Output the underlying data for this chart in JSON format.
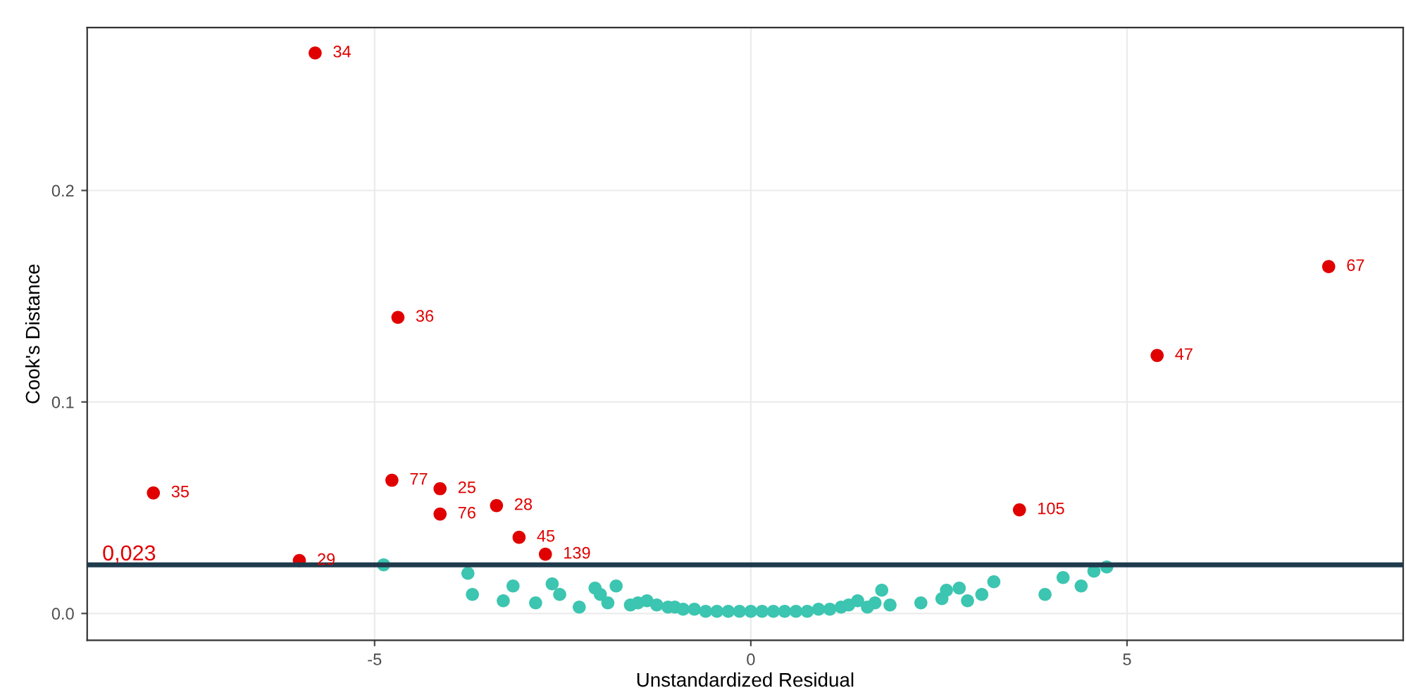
{
  "chart_data": {
    "type": "scatter",
    "xlabel": "Unstandardized Residual",
    "ylabel": "Cook's Distance",
    "xlim": [
      -8.82,
      8.67
    ],
    "ylim": [
      -0.0127,
      0.277
    ],
    "xticks": [
      -5,
      0,
      5
    ],
    "yticks": [
      {
        "value": 0,
        "label": "0.0"
      },
      {
        "value": 0.1,
        "label": "0.1"
      },
      {
        "value": 0.2,
        "label": "0.2"
      }
    ],
    "grid": true,
    "legend": false,
    "marker": "circle",
    "series": [
      {
        "color": "#3cc5b0",
        "x": [
          -4.88,
          -3.76,
          -3.7,
          -3.29,
          -3.16,
          -2.86,
          -2.64,
          -2.54,
          -2.28,
          -2.07,
          -2.0,
          -1.9,
          -1.79,
          -1.6,
          -1.5,
          -1.38,
          -1.25,
          -1.1,
          -1.01,
          -0.9,
          -0.75,
          -0.6,
          -0.45,
          -0.3,
          -0.15,
          0.0,
          0.15,
          0.3,
          0.45,
          0.6,
          0.75,
          0.9,
          1.05,
          1.2,
          1.3,
          1.42,
          1.55,
          1.65,
          1.74,
          1.85,
          2.26,
          2.54,
          2.6,
          2.77,
          2.88,
          3.07,
          3.23,
          3.91,
          4.15,
          4.39,
          4.56,
          4.73
        ],
        "values": [
          0.023,
          0.019,
          0.009,
          0.006,
          0.013,
          0.005,
          0.014,
          0.009,
          0.003,
          0.012,
          0.009,
          0.005,
          0.013,
          0.004,
          0.005,
          0.006,
          0.004,
          0.003,
          0.003,
          0.002,
          0.002,
          0.001,
          0.001,
          0.001,
          0.001,
          0.001,
          0.001,
          0.001,
          0.001,
          0.001,
          0.001,
          0.002,
          0.002,
          0.003,
          0.004,
          0.006,
          0.003,
          0.005,
          0.011,
          0.004,
          0.005,
          0.007,
          0.011,
          0.012,
          0.006,
          0.009,
          0.015,
          0.009,
          0.017,
          0.013,
          0.02,
          0.022
        ]
      },
      {
        "color": "#e00000",
        "x": [
          -5.79,
          -4.69,
          7.68,
          5.4,
          -7.94,
          -4.77,
          -4.13,
          -4.13,
          -3.38,
          -3.08,
          -2.73,
          -6.0,
          3.57
        ],
        "values": [
          0.265,
          0.14,
          0.164,
          0.122,
          0.057,
          0.063,
          0.059,
          0.047,
          0.051,
          0.036,
          0.028,
          0.025,
          0.049
        ]
      }
    ],
    "ref_lines": [
      {
        "axis": "y",
        "value": 0.023,
        "label": "0,023",
        "color": "#1f3b4d"
      }
    ],
    "annotations": [
      {
        "text": "34",
        "x": -5.79,
        "y": 0.265
      },
      {
        "text": "36",
        "x": -4.69,
        "y": 0.14
      },
      {
        "text": "67",
        "x": 7.68,
        "y": 0.164
      },
      {
        "text": "47",
        "x": 5.4,
        "y": 0.122
      },
      {
        "text": "35",
        "x": -7.94,
        "y": 0.057
      },
      {
        "text": "77",
        "x": -4.77,
        "y": 0.063
      },
      {
        "text": "25",
        "x": -4.13,
        "y": 0.059
      },
      {
        "text": "76",
        "x": -4.13,
        "y": 0.047
      },
      {
        "text": "28",
        "x": -3.38,
        "y": 0.051
      },
      {
        "text": "45",
        "x": -3.08,
        "y": 0.036
      },
      {
        "text": "139",
        "x": -2.73,
        "y": 0.028
      },
      {
        "text": "29",
        "x": -6.0,
        "y": 0.025
      },
      {
        "text": "105",
        "x": 3.57,
        "y": 0.049
      }
    ]
  }
}
